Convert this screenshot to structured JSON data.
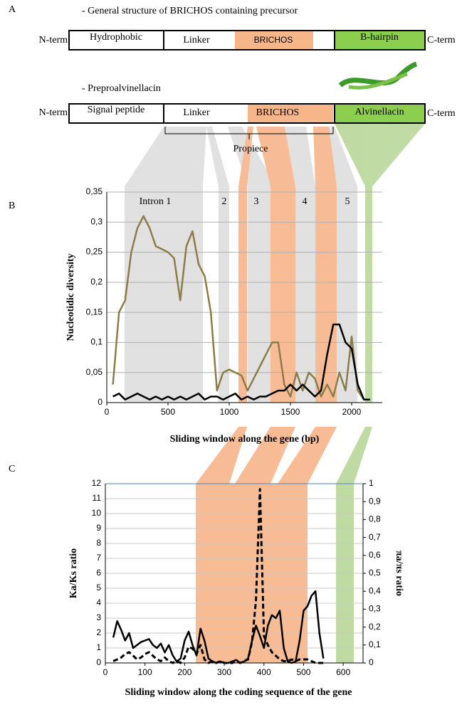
{
  "panel_a": {
    "label": "A",
    "rows": [
      {
        "title": "- General structure of BRICHOS containing precursor",
        "left": "N-term",
        "domains": [
          "Hydrophobic",
          "Linker",
          "BRICHOS",
          "B-hairpin"
        ],
        "right": "C-term"
      },
      {
        "title": "- Preproalvinellacin",
        "left": "N-term",
        "domains": [
          "Signal peptide",
          "Linker",
          "BRICHOS",
          "Alvinellacin"
        ],
        "right": "C-term"
      }
    ],
    "propiece": "Propiece"
  },
  "chart_data": [
    {
      "type": "line",
      "label": "B",
      "ylabel": "Nucleotidic diversity",
      "xlabel": "Sliding window along the gene (bp)",
      "annotations": [
        "Intron 1",
        "2",
        "3",
        "4",
        "5"
      ],
      "x": [
        0,
        50,
        100,
        150,
        200,
        250,
        300,
        350,
        400,
        450,
        500,
        550,
        600,
        650,
        700,
        750,
        800,
        850,
        900,
        950,
        1000,
        1050,
        1100,
        1150,
        1200,
        1250,
        1300,
        1350,
        1400,
        1450,
        1500,
        1550,
        1600,
        1650,
        1700,
        1750,
        1800,
        1850,
        1900,
        1950,
        2000,
        2050,
        2100,
        2150
      ],
      "series": [
        {
          "color": "#8b7d4a",
          "values": [
            null,
            0.03,
            0.15,
            0.17,
            0.25,
            0.29,
            0.31,
            0.29,
            0.26,
            0.255,
            0.25,
            0.24,
            0.17,
            0.26,
            0.285,
            0.23,
            0.21,
            0.15,
            0.02,
            0.05,
            0.055,
            0.05,
            0.045,
            0.02,
            0.04,
            0.06,
            0.08,
            0.1,
            0.1,
            0.03,
            0.01,
            0.05,
            0.02,
            0.05,
            0.04,
            0.01,
            0.03,
            0.01,
            0.05,
            0.02,
            0.11,
            0.02,
            0.005,
            0.005
          ]
        },
        {
          "color": "#000000",
          "values": [
            null,
            0.01,
            0.015,
            0.005,
            0.01,
            0.015,
            0.01,
            0.005,
            0.01,
            0.005,
            0.01,
            0.005,
            0.01,
            0.005,
            0.01,
            0.015,
            0.005,
            0.01,
            0.01,
            0.005,
            0.01,
            0.015,
            0.005,
            0.01,
            0.005,
            0.01,
            0.01,
            0.015,
            0.02,
            0.02,
            0.03,
            0.02,
            0.03,
            0.02,
            0.01,
            0.02,
            0.08,
            0.13,
            0.13,
            0.1,
            0.09,
            0.03,
            0.005,
            0.005
          ]
        }
      ],
      "xlim": [
        0,
        2250
      ],
      "ylim": [
        0,
        0.35
      ],
      "xticks": [
        0,
        500,
        1000,
        1500,
        2000
      ],
      "yticks": [
        0,
        {
          "value": 0.05,
          "label": "0,05"
        },
        {
          "value": 0.1,
          "label": "0,1"
        },
        {
          "value": 0.15,
          "label": "0,15"
        },
        {
          "value": 0.2,
          "label": "0,2"
        },
        {
          "value": 0.25,
          "label": "0,25"
        },
        {
          "value": 0.3,
          "label": "0,3"
        },
        {
          "value": 0.35,
          "label": "0,35"
        }
      ],
      "grid": true
    },
    {
      "type": "line",
      "label": "C",
      "ylabel": "Ka/Ks ratio",
      "y2label": "πa/πs ratio",
      "xlabel": "Sliding window along the coding sequence of the gene",
      "x": [
        20,
        30,
        40,
        50,
        60,
        70,
        80,
        90,
        100,
        110,
        120,
        130,
        140,
        150,
        160,
        170,
        180,
        190,
        200,
        210,
        220,
        230,
        240,
        250,
        260,
        270,
        280,
        290,
        300,
        310,
        320,
        330,
        340,
        350,
        360,
        370,
        380,
        390,
        400,
        410,
        420,
        430,
        440,
        450,
        460,
        470,
        480,
        490,
        500,
        510,
        520,
        530,
        540,
        550
      ],
      "series": [
        {
          "color": "#000000",
          "values": [
            1.7,
            2.8,
            2.2,
            1.5,
            2.0,
            1.0,
            1.2,
            1.4,
            1.5,
            1.6,
            1.2,
            1.0,
            1.3,
            0.7,
            1.2,
            0.5,
            0.1,
            0.3,
            1.5,
            2.1,
            1.2,
            0.5,
            2.3,
            1.5,
            0.3,
            0.1,
            0,
            0.1,
            0,
            0,
            0.1,
            0.2,
            0,
            0.1,
            0.3,
            1.5,
            2.5,
            1.8,
            1.0,
            2.5,
            3.2,
            3.0,
            3.5,
            1.0,
            0.1,
            0,
            0.1,
            1.5,
            3.5,
            3.8,
            4.5,
            4.8,
            2.0,
            0.3
          ]
        },
        {
          "color": "#000000",
          "dash": true,
          "axis": "y2",
          "values": [
            0.01,
            0.02,
            0.03,
            0.05,
            0.06,
            0.04,
            0.02,
            0.03,
            0.05,
            0.06,
            0.04,
            0.02,
            0.01,
            0.03,
            0.01,
            0,
            0.01,
            0,
            0.03,
            0.09,
            0.08,
            0.05,
            0.1,
            0.02,
            0,
            0.01,
            0,
            0.01,
            0,
            0,
            0,
            0.01,
            0,
            0.01,
            0.02,
            0.12,
            0.35,
            0.97,
            0.15,
            0.1,
            0.06,
            0.04,
            0.02,
            0.01,
            0.01,
            0.02,
            0.01,
            0.02,
            0.02,
            0.02,
            0.01,
            0,
            0,
            0
          ]
        }
      ],
      "xlim": [
        0,
        650
      ],
      "ylim": [
        0,
        12
      ],
      "y2lim": [
        0,
        1
      ],
      "xticks": [
        0,
        100,
        200,
        300,
        400,
        500,
        600
      ],
      "yticks": [
        0,
        1,
        2,
        3,
        4,
        5,
        6,
        7,
        8,
        9,
        10,
        11,
        12
      ],
      "y2ticks": [
        0,
        {
          "value": 0.1,
          "label": "0,1"
        },
        {
          "value": 0.2,
          "label": "0,2"
        },
        {
          "value": 0.3,
          "label": "0,3"
        },
        {
          "value": 0.4,
          "label": "0,4"
        },
        {
          "value": 0.5,
          "label": "0,5"
        },
        {
          "value": 0.6,
          "label": "0,6"
        },
        {
          "value": 0.7,
          "label": "0,7"
        },
        {
          "value": 0.8,
          "label": "0,8"
        },
        {
          "value": 0.9,
          "label": "0,9"
        },
        1
      ],
      "grid": true
    }
  ]
}
